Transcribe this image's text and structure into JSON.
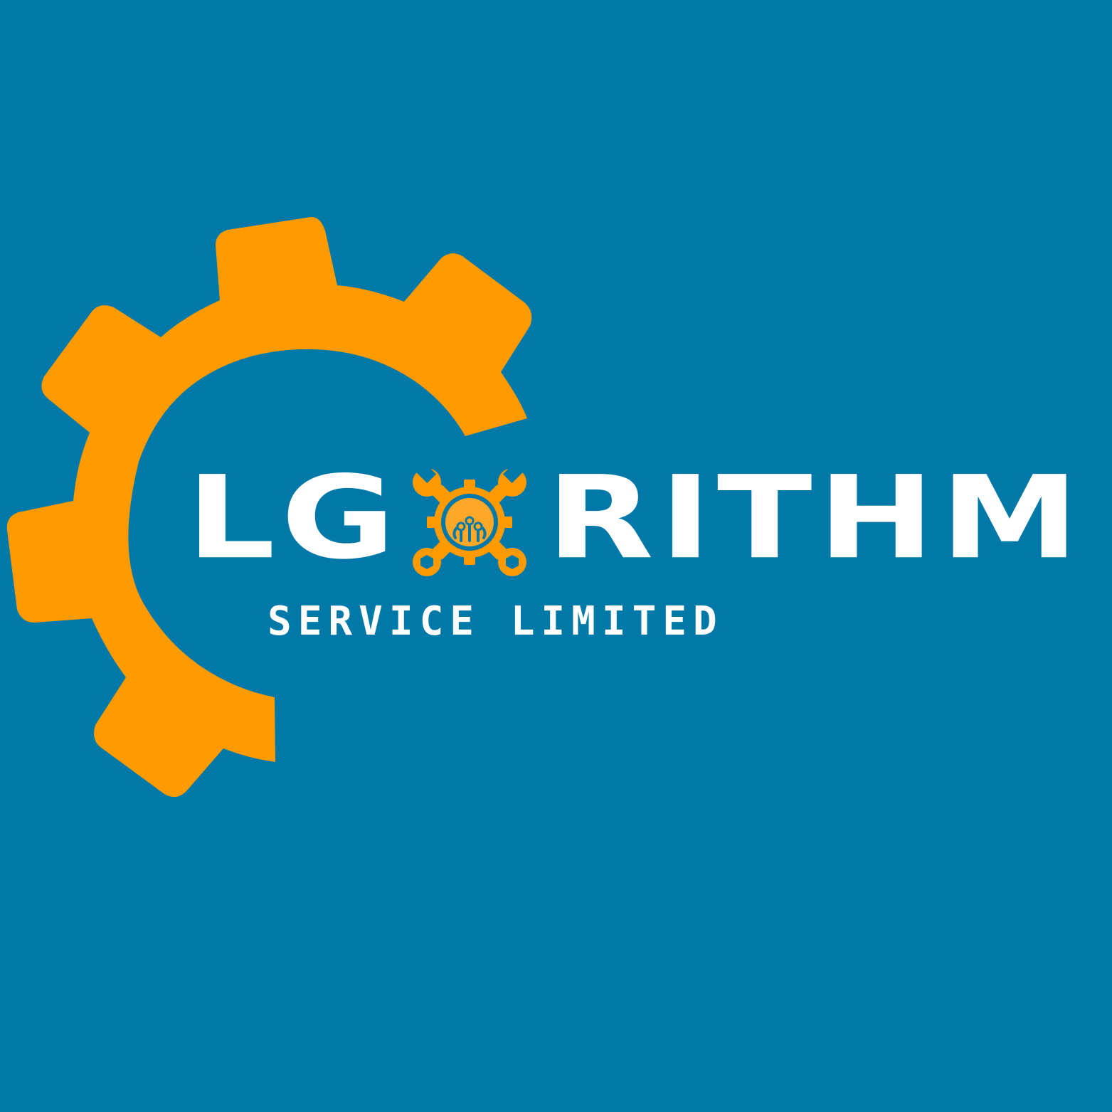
{
  "brand": {
    "name_part_1": "LG",
    "name_part_2": "RITHM",
    "tagline": "SERVICE LIMITED"
  },
  "icons": {
    "large_gear": "gear-icon",
    "emblem": "wrench-gear-circuit-icon"
  },
  "colors": {
    "background": "#0079a8",
    "accent": "#ff9a00",
    "text": "#ffffff"
  }
}
